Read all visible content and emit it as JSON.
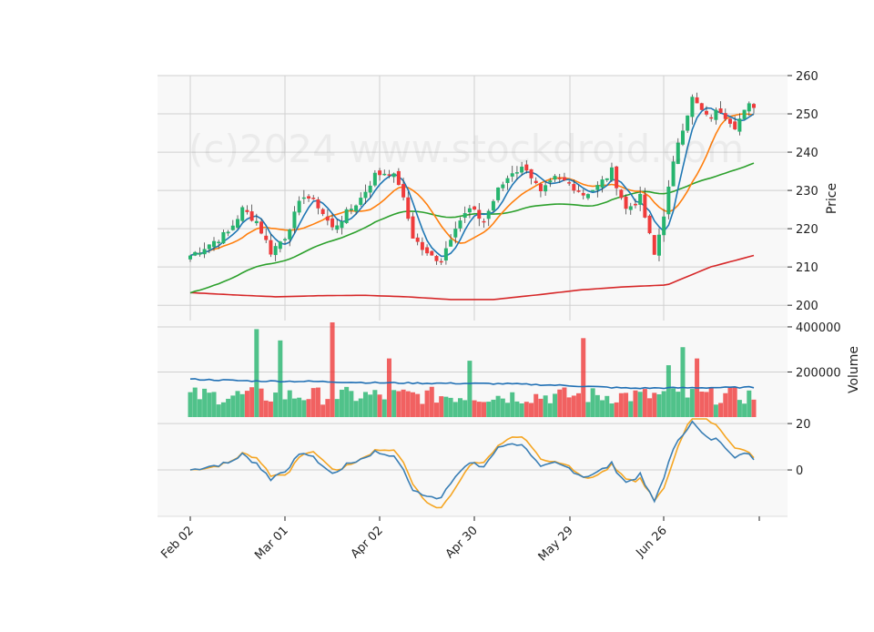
{
  "watermark": "(c)2024 www.stockdroid.com",
  "colors": {
    "up": "#26b46e",
    "down": "#ef3b3b",
    "sma_short": "#1f77b4",
    "sma_mid": "#ff7f0e",
    "sma_long": "#2ca02c",
    "sma_200": "#d62728",
    "vol_avg": "#1f6fb4",
    "osc_a": "#3b7fb5",
    "osc_b": "#f5a623",
    "panel_bg": "#f8f8f8",
    "grid": "#d0d0d0"
  },
  "chart_data": {
    "type": "candlestick",
    "x_ticks": [
      "Feb 02",
      "Mar 01",
      "Apr 02",
      "Apr 30",
      "May 29",
      "Jun 26"
    ],
    "price_panel": {
      "ylabel": "Price",
      "ylim": [
        196,
        260
      ],
      "yticks": [
        200,
        210,
        220,
        230,
        240,
        250,
        260
      ],
      "ohlc_anchors": [
        {
          "i": 0,
          "close": 213
        },
        {
          "i": 4,
          "close": 216
        },
        {
          "i": 8,
          "close": 219
        },
        {
          "i": 11,
          "close": 225
        },
        {
          "i": 14,
          "close": 222
        },
        {
          "i": 17,
          "close": 214
        },
        {
          "i": 20,
          "close": 218
        },
        {
          "i": 24,
          "close": 229
        },
        {
          "i": 27,
          "close": 226
        },
        {
          "i": 30,
          "close": 220
        },
        {
          "i": 33,
          "close": 224
        },
        {
          "i": 36,
          "close": 228
        },
        {
          "i": 39,
          "close": 234
        },
        {
          "i": 42,
          "close": 235
        },
        {
          "i": 44,
          "close": 232
        },
        {
          "i": 47,
          "close": 218
        },
        {
          "i": 50,
          "close": 213
        },
        {
          "i": 53,
          "close": 212
        },
        {
          "i": 56,
          "close": 221
        },
        {
          "i": 59,
          "close": 225
        },
        {
          "i": 62,
          "close": 222
        },
        {
          "i": 65,
          "close": 230
        },
        {
          "i": 68,
          "close": 235
        },
        {
          "i": 71,
          "close": 236
        },
        {
          "i": 74,
          "close": 229
        },
        {
          "i": 77,
          "close": 233
        },
        {
          "i": 80,
          "close": 232
        },
        {
          "i": 83,
          "close": 229
        },
        {
          "i": 86,
          "close": 231
        },
        {
          "i": 89,
          "close": 235
        },
        {
          "i": 92,
          "close": 225
        },
        {
          "i": 95,
          "close": 228
        },
        {
          "i": 98,
          "close": 213
        },
        {
          "i": 100,
          "close": 224
        },
        {
          "i": 103,
          "close": 243
        },
        {
          "i": 106,
          "close": 254
        },
        {
          "i": 109,
          "close": 249
        },
        {
          "i": 112,
          "close": 251
        },
        {
          "i": 115,
          "close": 247
        },
        {
          "i": 118,
          "close": 252
        }
      ],
      "sma_200": [
        203.3,
        202.7,
        202.2,
        202.5,
        202.6,
        202.2,
        201.5,
        201.5,
        202.7,
        204.0,
        204.8,
        205.3,
        210.0,
        213.0
      ]
    },
    "volume_panel": {
      "ylabel": "Volume",
      "ylim": [
        0,
        420000
      ],
      "yticks": [
        200000,
        400000
      ],
      "tall_bars": [
        {
          "i": 14,
          "value": 390000
        },
        {
          "i": 19,
          "value": 340000
        },
        {
          "i": 30,
          "value": 420000
        },
        {
          "i": 42,
          "value": 260000
        },
        {
          "i": 59,
          "value": 250000
        },
        {
          "i": 83,
          "value": 350000
        },
        {
          "i": 104,
          "value": 310000
        },
        {
          "i": 101,
          "value": 230000
        },
        {
          "i": 107,
          "value": 260000
        }
      ],
      "avg_level": [
        168000,
        160000,
        158000,
        152000,
        150000,
        148000,
        140000,
        128000,
        130000,
        132000
      ]
    },
    "oscillator_panel": {
      "ylim": [
        -20,
        22
      ],
      "yticks": [
        0,
        20
      ]
    }
  }
}
